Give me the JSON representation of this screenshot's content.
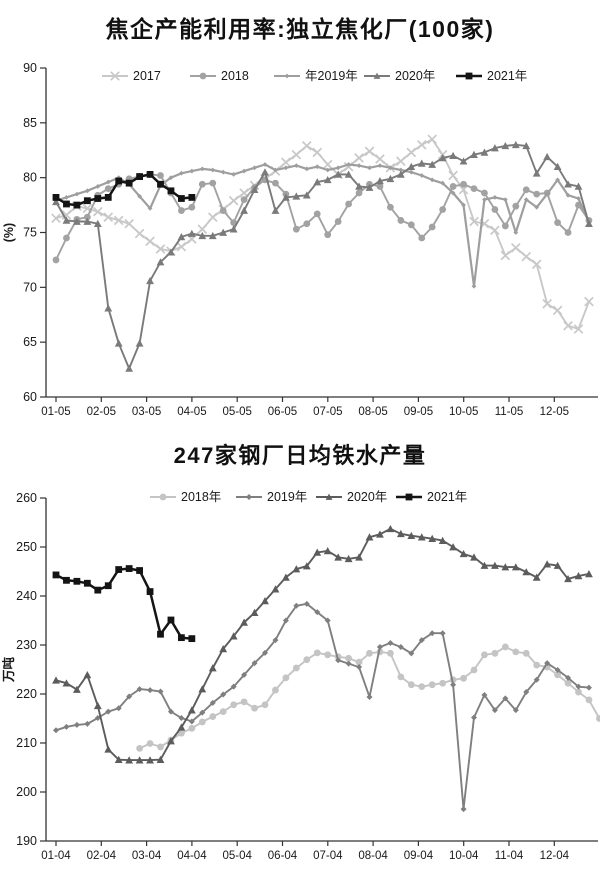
{
  "chart_data": [
    {
      "type": "line",
      "title": "焦企产能利用率:独立焦化厂(100家)",
      "ylabel": "(%)",
      "y_axis": {
        "min": 60,
        "max": 90,
        "ticks": [
          90,
          85,
          80,
          75,
          70,
          65,
          60
        ]
      },
      "x_ticks": [
        "01-05",
        "02-05",
        "03-05",
        "04-05",
        "05-05",
        "06-05",
        "07-05",
        "08-05",
        "09-05",
        "10-05",
        "11-05",
        "12-05"
      ],
      "grid": false,
      "legend_position": "top",
      "series": [
        {
          "name": "2017",
          "color": "#c8c8c8",
          "marker": "x",
          "start_week": 0,
          "values": [
            76.3,
            76.6,
            77.4,
            77.2,
            76.9,
            76.4,
            76.1,
            75.8,
            74.9,
            74.2,
            73.5,
            73.3,
            73.7,
            74.4,
            75.3,
            76.4,
            77.1,
            77.9,
            78.6,
            79.3,
            79.9,
            80.6,
            81.4,
            82.1,
            82.9,
            82.3,
            81.2,
            80.3,
            81.0,
            81.8,
            82.4,
            81.7,
            80.9,
            81.5,
            82.3,
            83.0,
            83.5,
            82.1,
            80.2,
            78.9,
            76.0,
            75.8,
            75.2,
            72.9,
            73.6,
            72.8,
            72.1,
            68.5,
            67.9,
            66.5,
            66.2,
            68.7
          ]
        },
        {
          "name": "2018",
          "color": "#a2a2a2",
          "marker": "circle",
          "start_week": 0,
          "values": [
            72.5,
            74.5,
            76.2,
            76.4,
            78.4,
            79.0,
            79.4,
            79.9,
            80.1,
            80.3,
            80.2,
            78.6,
            77.0,
            77.3,
            79.4,
            79.5,
            77.0,
            75.9,
            78.0,
            79.1,
            79.8,
            79.5,
            78.5,
            75.3,
            75.8,
            76.7,
            74.8,
            76.0,
            77.6,
            78.6,
            79.4,
            79.2,
            77.3,
            76.1,
            75.7,
            74.5,
            75.5,
            77.1,
            79.2,
            79.4,
            79.0,
            78.6,
            77.1,
            75.6,
            77.4,
            78.9,
            78.5,
            78.6,
            75.9,
            75.0,
            77.5,
            76.1
          ]
        },
        {
          "name": "年2019年",
          "color": "#9e9e9e",
          "marker": "diamond",
          "start_week": 0,
          "values": [
            77.9,
            78.2,
            78.5,
            78.8,
            79.2,
            79.6,
            80.0,
            79.4,
            78.3,
            77.2,
            79.3,
            80.0,
            80.4,
            80.6,
            80.8,
            80.7,
            80.5,
            80.3,
            80.6,
            80.9,
            81.2,
            80.7,
            80.9,
            81.1,
            80.8,
            81.0,
            80.7,
            80.9,
            81.2,
            81.1,
            80.9,
            81.1,
            80.9,
            80.7,
            80.5,
            80.2,
            79.8,
            79.5,
            78.6,
            77.5,
            70.1,
            78.0,
            78.2,
            78.0,
            75.0,
            78.0,
            77.3,
            78.5,
            79.8,
            78.4,
            78.1,
            75.9
          ]
        },
        {
          "name": "2020年",
          "color": "#7a7a7a",
          "marker": "triangle",
          "start_week": 0,
          "values": [
            77.8,
            76.1,
            76.0,
            76.0,
            75.8,
            68.1,
            64.9,
            62.6,
            64.9,
            70.6,
            72.3,
            73.2,
            74.6,
            74.9,
            74.7,
            74.7,
            75.0,
            75.3,
            77.0,
            78.9,
            80.5,
            77.0,
            78.2,
            78.3,
            78.4,
            79.6,
            79.8,
            80.3,
            80.3,
            79.2,
            79.1,
            79.7,
            79.9,
            80.3,
            81.0,
            81.3,
            81.2,
            81.8,
            82.0,
            81.5,
            82.1,
            82.3,
            82.7,
            82.9,
            83.0,
            82.9,
            80.4,
            81.9,
            81.0,
            79.4,
            79.2,
            75.8
          ]
        },
        {
          "name": "2021年",
          "color": "#141414",
          "marker": "square",
          "start_week": 0,
          "values": [
            78.2,
            77.6,
            77.5,
            77.9,
            78.1,
            78.2,
            79.7,
            79.5,
            80.1,
            80.3,
            79.4,
            78.8,
            78.1,
            78.2
          ]
        }
      ]
    },
    {
      "type": "line",
      "title": "247家钢厂日均铁水产量",
      "ylabel": "万吨",
      "y_axis": {
        "min": 190,
        "max": 260,
        "ticks": [
          260,
          250,
          240,
          230,
          220,
          210,
          200,
          190
        ]
      },
      "x_ticks": [
        "01-04",
        "02-04",
        "03-04",
        "04-04",
        "05-04",
        "06-04",
        "07-04",
        "08-04",
        "09-04",
        "10-04",
        "11-04",
        "12-04"
      ],
      "grid": false,
      "legend_position": "top",
      "series": [
        {
          "name": "2018年",
          "color": "#c4c4c4",
          "marker": "circle",
          "start_week": 8,
          "values": [
            208.9,
            209.9,
            209.2,
            210.6,
            212.0,
            213.0,
            214.3,
            215.4,
            216.4,
            217.8,
            218.4,
            217.1,
            217.8,
            220.8,
            223.3,
            225.3,
            227.0,
            228.4,
            228.0,
            227.6,
            227.3,
            226.5,
            228.3,
            228.6,
            228.3,
            223.5,
            221.9,
            221.5,
            221.9,
            222.2,
            222.9,
            223.2,
            224.9,
            228.0,
            228.3,
            229.6,
            228.6,
            228.3,
            225.9,
            225.5,
            223.9,
            222.2,
            220.4,
            218.8,
            215.0
          ]
        },
        {
          "name": "2019年",
          "color": "#7f7f7f",
          "marker": "diamond",
          "start_week": 0,
          "values": [
            212.6,
            213.3,
            213.7,
            213.9,
            215.1,
            216.4,
            217.1,
            219.5,
            221.0,
            220.8,
            220.5,
            216.4,
            215.1,
            214.4,
            216.2,
            218.2,
            219.9,
            221.5,
            223.9,
            226.3,
            228.4,
            231.0,
            235.0,
            238.0,
            238.4,
            236.7,
            235.0,
            226.9,
            226.2,
            225.5,
            219.4,
            229.6,
            230.4,
            229.6,
            228.3,
            231.0,
            232.4,
            232.4,
            221.9,
            196.5,
            215.2,
            219.8,
            216.7,
            219.1,
            216.7,
            220.4,
            222.9,
            226.3,
            224.9,
            223.3,
            221.5,
            221.3
          ]
        },
        {
          "name": "2020年",
          "color": "#5c5c5c",
          "marker": "triangle",
          "start_week": 0,
          "values": [
            222.8,
            222.2,
            220.9,
            223.9,
            217.6,
            208.7,
            206.6,
            206.5,
            206.5,
            206.5,
            206.6,
            210.4,
            213.2,
            216.7,
            221.0,
            225.3,
            229.2,
            231.8,
            234.6,
            236.6,
            239.0,
            241.4,
            243.8,
            245.5,
            246.1,
            248.9,
            249.2,
            247.9,
            247.6,
            247.9,
            252.0,
            252.6,
            253.7,
            252.7,
            252.3,
            252.0,
            251.7,
            251.3,
            250.0,
            248.6,
            247.9,
            246.2,
            246.2,
            245.9,
            245.9,
            244.9,
            243.8,
            246.5,
            246.2,
            243.5,
            244.1,
            244.5
          ]
        },
        {
          "name": "2021年",
          "color": "#141414",
          "marker": "square",
          "start_week": 0,
          "values": [
            244.3,
            243.2,
            243.0,
            242.6,
            241.2,
            242.1,
            245.4,
            245.6,
            245.2,
            240.9,
            232.2,
            235.1,
            231.5,
            231.3
          ]
        }
      ]
    }
  ]
}
